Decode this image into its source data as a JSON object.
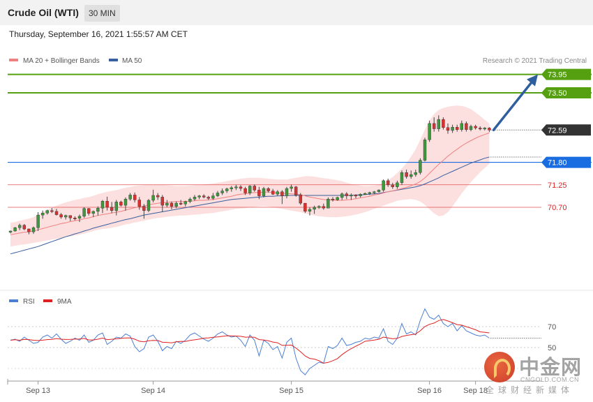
{
  "header": {
    "title": "Crude Oil (WTI)",
    "interval": "30 MIN",
    "datetime": "Thursday, September 16, 2021 1:55:57 AM CET"
  },
  "legend": {
    "ma20": "MA 20 + Bollinger Bands",
    "ma50": "MA 50",
    "credit": "Research © 2021 Trading Central",
    "rsi": "RSI",
    "rsi_ma": "9MA"
  },
  "colors": {
    "ma20": "#f08080",
    "ma50": "#3a5f9e",
    "band_fill": "#fbd9d9",
    "target": "#55a011",
    "pivot": "#1a6de0",
    "support": "#e25050",
    "current": "#333333",
    "arrow": "#2f5e9e",
    "bull_candle": "#3c9a3c",
    "bear_candle": "#d93030",
    "rsi_line": "#4a7fd4",
    "rsi_ma_line": "#e02020"
  },
  "levels": [
    {
      "label": "73.95",
      "value": 73.95,
      "kind": "target"
    },
    {
      "label": "73.50",
      "value": 73.5,
      "kind": "target"
    },
    {
      "label": "72.59",
      "value": 72.59,
      "kind": "current"
    },
    {
      "label": "71.80",
      "value": 71.8,
      "kind": "pivot"
    },
    {
      "label": "71.25",
      "value": 71.25,
      "kind": "support"
    },
    {
      "label": "70.70",
      "value": 70.7,
      "kind": "support"
    }
  ],
  "chart_data": {
    "type": "candlestick",
    "title": "Crude Oil (WTI)",
    "interval": "30 MIN",
    "x_tick_labels": [
      "Sep 13",
      "Sep 14",
      "Sep 15",
      "Sep 16",
      "Sep 18"
    ],
    "x_tick_index": [
      6,
      31,
      61,
      91,
      101
    ],
    "ylim": [
      69.5,
      74.2
    ],
    "candles": [
      [
        70.09,
        70.13,
        70.06,
        70.12
      ],
      [
        70.12,
        70.22,
        70.1,
        70.2
      ],
      [
        70.2,
        70.3,
        70.14,
        70.26
      ],
      [
        70.26,
        70.29,
        70.14,
        70.17
      ],
      [
        70.17,
        70.18,
        70.04,
        70.1
      ],
      [
        70.1,
        70.23,
        70.05,
        70.2
      ],
      [
        70.2,
        70.58,
        70.12,
        70.51
      ],
      [
        70.51,
        70.62,
        70.42,
        70.56
      ],
      [
        70.56,
        70.64,
        70.52,
        70.62
      ],
      [
        70.62,
        70.68,
        70.56,
        70.6
      ],
      [
        70.6,
        70.66,
        70.5,
        70.52
      ],
      [
        70.52,
        70.56,
        70.42,
        70.46
      ],
      [
        70.46,
        70.52,
        70.4,
        70.5
      ],
      [
        70.5,
        70.5,
        70.36,
        70.44
      ],
      [
        70.44,
        70.48,
        70.38,
        70.43
      ],
      [
        70.43,
        70.52,
        70.34,
        70.48
      ],
      [
        70.48,
        70.7,
        70.44,
        70.67
      ],
      [
        70.67,
        70.68,
        70.5,
        70.55
      ],
      [
        70.55,
        70.62,
        70.46,
        70.6
      ],
      [
        70.6,
        70.72,
        70.5,
        70.68
      ],
      [
        70.68,
        70.88,
        70.56,
        70.85
      ],
      [
        70.85,
        70.96,
        70.62,
        70.7
      ],
      [
        70.7,
        70.83,
        70.56,
        70.62
      ],
      [
        70.62,
        70.88,
        70.5,
        70.83
      ],
      [
        70.83,
        70.86,
        70.72,
        70.75
      ],
      [
        70.75,
        70.94,
        70.62,
        70.9
      ],
      [
        70.9,
        71.05,
        70.86,
        71.0
      ],
      [
        71.0,
        71.06,
        70.82,
        70.88
      ],
      [
        70.88,
        70.95,
        70.64,
        70.72
      ],
      [
        70.72,
        70.78,
        70.42,
        70.62
      ],
      [
        70.62,
        70.9,
        70.58,
        70.87
      ],
      [
        70.87,
        71.13,
        70.82,
        70.99
      ],
      [
        70.99,
        71.05,
        70.88,
        70.95
      ],
      [
        70.95,
        71.0,
        70.58,
        70.75
      ],
      [
        70.75,
        70.88,
        70.7,
        70.8
      ],
      [
        70.8,
        70.84,
        70.65,
        70.72
      ],
      [
        70.72,
        70.84,
        70.68,
        70.8
      ],
      [
        70.8,
        70.88,
        70.75,
        70.78
      ],
      [
        70.78,
        70.86,
        70.72,
        70.84
      ],
      [
        70.84,
        70.94,
        70.8,
        70.9
      ],
      [
        70.9,
        71.0,
        70.86,
        70.95
      ],
      [
        70.95,
        71.0,
        70.9,
        70.98
      ],
      [
        70.98,
        71.02,
        70.92,
        70.95
      ],
      [
        70.95,
        70.98,
        70.88,
        70.92
      ],
      [
        70.92,
        71.05,
        70.88,
        70.98
      ],
      [
        70.98,
        71.1,
        70.95,
        71.05
      ],
      [
        71.05,
        71.16,
        71.0,
        71.1
      ],
      [
        71.1,
        71.18,
        71.05,
        71.15
      ],
      [
        71.15,
        71.22,
        71.08,
        71.18
      ],
      [
        71.18,
        71.25,
        71.12,
        71.2
      ],
      [
        71.2,
        71.24,
        71.1,
        71.16
      ],
      [
        71.16,
        71.2,
        71.0,
        71.05
      ],
      [
        71.05,
        71.24,
        71.0,
        71.22
      ],
      [
        71.22,
        71.26,
        71.08,
        71.12
      ],
      [
        71.12,
        71.2,
        70.9,
        70.98
      ],
      [
        70.98,
        71.2,
        70.94,
        71.16
      ],
      [
        71.16,
        71.19,
        71.06,
        71.1
      ],
      [
        71.1,
        71.15,
        71.0,
        71.02
      ],
      [
        71.02,
        71.12,
        70.98,
        71.08
      ],
      [
        71.08,
        71.12,
        70.78,
        70.98
      ],
      [
        70.98,
        71.2,
        70.92,
        71.16
      ],
      [
        71.16,
        71.26,
        71.08,
        71.2
      ],
      [
        71.2,
        71.22,
        70.96,
        71.0
      ],
      [
        71.0,
        71.05,
        70.76,
        70.8
      ],
      [
        70.8,
        70.8,
        70.56,
        70.6
      ],
      [
        70.6,
        70.7,
        70.5,
        70.65
      ],
      [
        70.65,
        70.74,
        70.54,
        70.7
      ],
      [
        70.7,
        70.75,
        70.66,
        70.72
      ],
      [
        70.72,
        70.79,
        70.64,
        70.68
      ],
      [
        70.68,
        70.94,
        70.68,
        70.9
      ],
      [
        70.9,
        70.95,
        70.84,
        70.88
      ],
      [
        70.88,
        70.96,
        70.86,
        70.94
      ],
      [
        70.94,
        71.06,
        70.88,
        71.03
      ],
      [
        71.03,
        71.07,
        70.9,
        70.98
      ],
      [
        70.98,
        71.04,
        70.88,
        71.0
      ],
      [
        71.0,
        71.02,
        70.92,
        70.98
      ],
      [
        70.98,
        71.04,
        70.94,
        71.02
      ],
      [
        71.02,
        71.06,
        71.0,
        71.04
      ],
      [
        71.04,
        71.08,
        71.0,
        71.06
      ],
      [
        71.06,
        71.1,
        71.02,
        71.08
      ],
      [
        71.08,
        71.14,
        71.06,
        71.12
      ],
      [
        71.12,
        71.38,
        71.08,
        71.35
      ],
      [
        71.35,
        71.4,
        71.2,
        71.25
      ],
      [
        71.25,
        71.3,
        71.15,
        71.2
      ],
      [
        71.2,
        71.35,
        71.15,
        71.3
      ],
      [
        71.3,
        71.6,
        71.25,
        71.55
      ],
      [
        71.55,
        71.62,
        71.4,
        71.45
      ],
      [
        71.45,
        71.6,
        71.4,
        71.5
      ],
      [
        71.5,
        71.62,
        71.45,
        71.55
      ],
      [
        71.55,
        71.9,
        71.5,
        71.85
      ],
      [
        71.85,
        72.4,
        71.82,
        72.35
      ],
      [
        72.35,
        72.82,
        72.3,
        72.75
      ],
      [
        72.75,
        72.9,
        72.55,
        72.62
      ],
      [
        72.62,
        72.95,
        72.55,
        72.85
      ],
      [
        72.85,
        72.9,
        72.6,
        72.65
      ],
      [
        72.65,
        72.75,
        72.5,
        72.58
      ],
      [
        72.58,
        72.72,
        72.52,
        72.66
      ],
      [
        72.66,
        72.72,
        72.55,
        72.6
      ],
      [
        72.6,
        72.82,
        72.55,
        72.75
      ],
      [
        72.75,
        72.8,
        72.55,
        72.6
      ],
      [
        72.6,
        72.72,
        72.56,
        72.68
      ],
      [
        72.68,
        72.72,
        72.6,
        72.64
      ],
      [
        72.64,
        72.68,
        72.58,
        72.62
      ],
      [
        72.62,
        72.66,
        72.58,
        72.64
      ],
      [
        72.64,
        72.66,
        72.54,
        72.59
      ]
    ],
    "ma20": [
      70.03,
      70.05,
      70.07,
      70.09,
      70.1,
      70.12,
      70.15,
      70.18,
      70.21,
      70.24,
      70.27,
      70.3,
      70.32,
      70.35,
      70.37,
      70.39,
      70.42,
      70.44,
      70.47,
      70.5,
      70.52,
      70.54,
      70.56,
      70.58,
      70.6,
      70.63,
      70.66,
      70.69,
      70.71,
      70.73,
      70.76,
      70.78,
      70.8,
      70.81,
      70.82,
      70.83,
      70.84,
      70.84,
      70.84,
      70.85,
      70.86,
      70.87,
      70.87,
      70.88,
      70.89,
      70.91,
      70.93,
      70.95,
      70.97,
      71.0,
      71.02,
      71.03,
      71.05,
      71.06,
      71.06,
      71.07,
      71.07,
      71.06,
      71.05,
      71.04,
      71.04,
      71.03,
      71.02,
      71.01,
      70.98,
      70.95,
      70.93,
      70.91,
      70.89,
      70.88,
      70.88,
      70.87,
      70.87,
      70.88,
      70.89,
      70.91,
      70.93,
      70.95,
      70.97,
      71.0,
      71.02,
      71.05,
      71.08,
      71.1,
      71.13,
      71.16,
      71.19,
      71.23,
      71.27,
      71.33,
      71.42,
      71.53,
      71.64,
      71.75,
      71.85,
      71.95,
      72.04,
      72.12,
      72.2,
      72.27,
      72.33,
      72.39,
      72.44,
      72.48,
      72.52
    ],
    "bb_upper": [
      70.32,
      70.34,
      70.37,
      70.4,
      70.42,
      70.46,
      70.52,
      70.58,
      70.64,
      70.69,
      70.74,
      70.78,
      70.82,
      70.85,
      70.88,
      70.9,
      70.93,
      70.95,
      70.98,
      71.02,
      71.05,
      71.08,
      71.1,
      71.12,
      71.15,
      71.18,
      71.2,
      71.22,
      71.23,
      71.24,
      71.25,
      71.25,
      71.25,
      71.25,
      71.24,
      71.23,
      71.22,
      71.22,
      71.22,
      71.23,
      71.24,
      71.25,
      71.26,
      71.27,
      71.28,
      71.3,
      71.32,
      71.34,
      71.36,
      71.38,
      71.4,
      71.41,
      71.42,
      71.42,
      71.42,
      71.41,
      71.4,
      71.39,
      71.38,
      71.38,
      71.38,
      71.4,
      71.42,
      71.44,
      71.46,
      71.46,
      71.45,
      71.43,
      71.41,
      71.4,
      71.38,
      71.36,
      71.34,
      71.3,
      71.27,
      71.25,
      71.23,
      71.22,
      71.22,
      71.23,
      71.25,
      71.3,
      71.36,
      71.44,
      71.54,
      71.65,
      71.78,
      71.94,
      72.12,
      72.35,
      72.6,
      72.82,
      72.98,
      73.08,
      73.13,
      73.16,
      73.18,
      73.19,
      73.18,
      73.15,
      73.1,
      73.02,
      72.93,
      72.84,
      72.75
    ],
    "bb_lower": [
      69.74,
      69.76,
      69.78,
      69.79,
      69.81,
      69.83,
      69.85,
      69.87,
      69.89,
      69.91,
      69.93,
      69.95,
      69.97,
      69.99,
      70.01,
      70.03,
      70.06,
      70.09,
      70.12,
      70.15,
      70.17,
      70.18,
      70.2,
      70.22,
      70.25,
      70.28,
      70.3,
      70.33,
      70.35,
      70.37,
      70.4,
      70.42,
      70.44,
      70.45,
      70.47,
      70.48,
      70.49,
      70.5,
      70.5,
      70.51,
      70.52,
      70.53,
      70.54,
      70.55,
      70.56,
      70.58,
      70.6,
      70.62,
      70.64,
      70.66,
      70.67,
      70.68,
      70.7,
      70.71,
      70.72,
      70.73,
      70.72,
      70.7,
      70.68,
      70.66,
      70.64,
      70.62,
      70.6,
      70.58,
      70.55,
      70.52,
      70.5,
      70.48,
      70.47,
      70.46,
      70.46,
      70.46,
      70.47,
      70.48,
      70.5,
      70.52,
      70.55,
      70.58,
      70.62,
      70.66,
      70.7,
      70.74,
      70.78,
      70.82,
      70.86,
      70.88,
      70.89,
      70.9,
      70.88,
      70.84,
      70.76,
      70.65,
      70.55,
      70.48,
      70.5,
      70.58,
      70.72,
      70.88,
      71.04,
      71.18,
      71.32,
      71.44,
      71.56,
      71.66,
      71.76
    ],
    "ma50": [
      69.56,
      69.59,
      69.62,
      69.65,
      69.68,
      69.71,
      69.74,
      69.78,
      69.82,
      69.86,
      69.9,
      69.94,
      69.98,
      70.01,
      70.05,
      70.08,
      70.12,
      70.15,
      70.19,
      70.22,
      70.25,
      70.28,
      70.31,
      70.34,
      70.37,
      70.4,
      70.42,
      70.45,
      70.48,
      70.51,
      70.53,
      70.55,
      70.57,
      70.59,
      70.61,
      70.63,
      70.65,
      70.67,
      70.69,
      70.71,
      70.73,
      70.75,
      70.77,
      70.79,
      70.81,
      70.83,
      70.85,
      70.87,
      70.89,
      70.9,
      70.91,
      70.92,
      70.93,
      70.94,
      70.95,
      70.96,
      70.97,
      70.97,
      70.98,
      70.98,
      70.99,
      70.99,
      70.99,
      70.99,
      70.99,
      70.99,
      70.99,
      70.99,
      70.99,
      70.99,
      70.99,
      70.99,
      70.99,
      70.99,
      70.99,
      71.0,
      71.0,
      71.01,
      71.02,
      71.03,
      71.04,
      71.06,
      71.08,
      71.1,
      71.12,
      71.14,
      71.16,
      71.18,
      71.2,
      71.23,
      71.27,
      71.32,
      71.37,
      71.42,
      71.48,
      71.53,
      71.58,
      71.63,
      71.68,
      71.73,
      71.78,
      71.82,
      71.86,
      71.9,
      71.93
    ],
    "rsi": [
      57.0,
      58.0,
      56.0,
      60.0,
      57.0,
      54.0,
      55.0,
      60.0,
      62.0,
      59.0,
      63.0,
      58.0,
      54.0,
      56.0,
      59.0,
      57.0,
      62.0,
      55.0,
      57.0,
      62.0,
      64.0,
      53.0,
      56.0,
      60.0,
      59.0,
      63.0,
      61.0,
      51.0,
      46.0,
      49.0,
      60.0,
      62.0,
      56.0,
      47.0,
      51.0,
      49.0,
      56.0,
      54.0,
      57.0,
      62.0,
      64.0,
      61.0,
      58.0,
      56.0,
      59.0,
      63.0,
      65.0,
      62.0,
      60.0,
      61.0,
      57.0,
      51.0,
      62.0,
      57.0,
      42.0,
      57.0,
      54.0,
      48.0,
      51.0,
      40.0,
      55.0,
      59.0,
      40.0,
      28.0,
      24.0,
      30.0,
      33.0,
      36.0,
      35.0,
      51.0,
      49.0,
      52.0,
      59.0,
      52.0,
      53.0,
      55.0,
      56.0,
      59.0,
      58.0,
      60.0,
      59.0,
      68.0,
      56.0,
      53.0,
      59.0,
      73.0,
      63.0,
      65.0,
      62.0,
      76.0,
      87.0,
      79.0,
      77.0,
      81.0,
      73.0,
      70.0,
      73.0,
      66.0,
      71.0,
      66.0,
      64.0,
      62.0,
      61.0,
      62.0,
      59.0
    ],
    "rsi_ma": [
      57.0,
      57.5,
      57.0,
      57.8,
      57.6,
      57.0,
      56.7,
      57.1,
      57.6,
      57.8,
      58.6,
      58.0,
      57.7,
      57.8,
      58.1,
      58.2,
      58.7,
      57.3,
      57.3,
      58.0,
      59.1,
      57.6,
      57.9,
      58.4,
      58.8,
      59.2,
      59.3,
      58.0,
      56.1,
      55.5,
      56.5,
      56.8,
      56.7,
      55.1,
      54.9,
      54.5,
      55.5,
      55.9,
      55.8,
      56.8,
      57.4,
      58.1,
      59.0,
      59.3,
      59.8,
      60.2,
      60.7,
      61.3,
      61.2,
      61.0,
      60.7,
      59.9,
      60.1,
      59.8,
      57.6,
      57.3,
      56.5,
      55.3,
      54.6,
      52.1,
      52.2,
      52.4,
      49.6,
      46.0,
      42.0,
      39.6,
      39.0,
      37.5,
      35.1,
      35.8,
      37.5,
      39.4,
      43.2,
      46.3,
      49.0,
      51.3,
      53.5,
      56.0,
      56.6,
      57.2,
      57.9,
      60.0,
      59.3,
      58.4,
      58.8,
      60.6,
      61.6,
      62.3,
      62.9,
      66.1,
      70.1,
      72.2,
      73.4,
      75.8,
      76.8,
      75.4,
      73.7,
      71.9,
      71.4,
      69.9,
      68.6,
      67.0,
      65.0,
      64.6,
      64.0
    ],
    "rsi_levels": [
      70,
      50
    ]
  }
}
